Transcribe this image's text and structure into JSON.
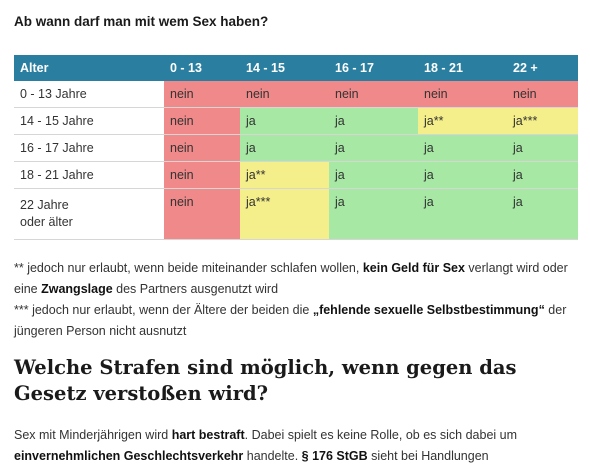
{
  "heading": "Ab wann darf man mit wem Sex haben?",
  "table": {
    "headers": [
      "Alter",
      "0 - 13",
      "14 - 15",
      "16 - 17",
      "18 - 21",
      "22 +"
    ],
    "rows": [
      {
        "label": "0 - 13 Jahre",
        "cells": [
          "nein",
          "nein",
          "nein",
          "nein",
          "nein"
        ]
      },
      {
        "label": "14 - 15 Jahre",
        "cells": [
          "nein",
          "ja",
          "ja",
          "ja**",
          "ja***"
        ]
      },
      {
        "label": "16 - 17 Jahre",
        "cells": [
          "nein",
          "ja",
          "ja",
          "ja",
          "ja"
        ]
      },
      {
        "label": "18 - 21 Jahre",
        "cells": [
          "nein",
          "ja**",
          "ja",
          "ja",
          "ja"
        ]
      },
      {
        "label_line1": "22 Jahre",
        "label_line2": "oder älter",
        "cells": [
          "nein",
          "ja***",
          "ja",
          "ja",
          "ja"
        ]
      }
    ],
    "colors": {
      "nein": "#f08a8a",
      "ja": "#a6e8a4",
      "conditional": "#f4ef8a",
      "header": "#2a7fa0"
    }
  },
  "notes": {
    "note1": {
      "a": "** jedoch nur erlaubt, wenn beide miteinander schlafen wollen, ",
      "b": "kein Geld für Sex",
      "c": " verlangt wird oder eine ",
      "d": "Zwangslage",
      "e": " des Partners ausgenutzt wird"
    },
    "note2": {
      "a": "*** jedoch nur erlaubt, wenn der Ältere der beiden die ",
      "b": "„fehlende sexuelle Selbstbestimmung“",
      "c": " der jüngeren Person nicht ausnutzt"
    }
  },
  "section_title": "Welche Strafen sind möglich, wenn gegen das Gesetz ver­stoßen wird?",
  "body": {
    "a": "Sex mit Minderjährigen wird ",
    "b": "hart bestraft",
    "c": ". Dabei spielt es keine Rolle, ob es sich dabei um ",
    "d": "einvernehmlichen Geschlechtsverkehr",
    "e": " handelte. ",
    "f": "§ 176 StGB",
    "g": " sieht bei Handlungen"
  }
}
